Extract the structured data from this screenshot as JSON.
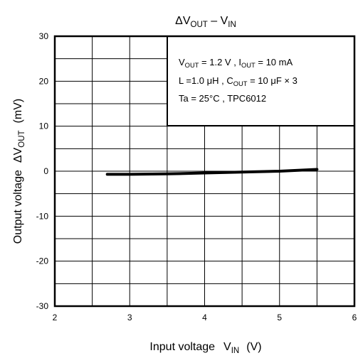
{
  "chart_data": {
    "type": "line",
    "title": {
      "main": "ΔV",
      "sub1": "OUT",
      "dash": " – V",
      "sub2": "IN"
    },
    "xlabel": {
      "pre": "Input voltage",
      "v": "V",
      "sub": "IN",
      "unit": "(V)"
    },
    "ylabel": {
      "pre": "Output voltage",
      "dv": "ΔV",
      "sub": "OUT",
      "unit": "(mV)"
    },
    "xlim": [
      2,
      6
    ],
    "ylim": [
      -30,
      30
    ],
    "xticks": [
      "2",
      "3",
      "4",
      "5",
      "6"
    ],
    "yticks": [
      "30",
      "20",
      "10",
      "0",
      "-10",
      "-20",
      "-30"
    ],
    "grid": true,
    "series": [
      {
        "x": [
          2.7,
          3.0,
          3.5,
          4.0,
          4.5,
          5.0,
          5.5
        ],
        "y": [
          -0.7,
          -0.7,
          -0.6,
          -0.4,
          -0.2,
          0.0,
          0.4
        ]
      }
    ],
    "annotation": {
      "line1": {
        "v": "V",
        "vsub": "OUT",
        "vval": " = 1.2 V , I",
        "isub": "OUT",
        "ival": " = 10 mA"
      },
      "line2": {
        "l": "L =1.0 μH , C",
        "csub": "OUT",
        "cval": " = 10 μF  × 3"
      },
      "line3": "Ta = 25°C , TPC6012"
    },
    "colors": {
      "line": "#000000",
      "grid": "#000000"
    }
  }
}
